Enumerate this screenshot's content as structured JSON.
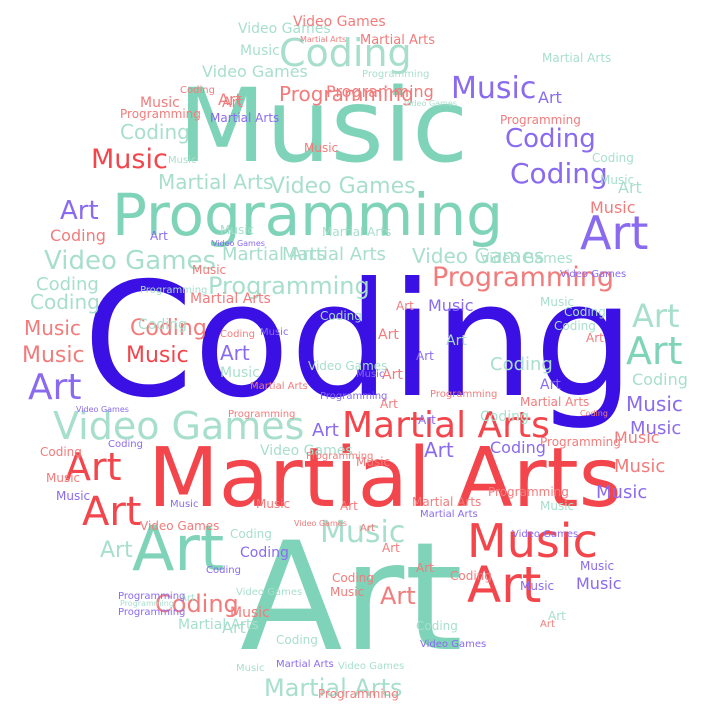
{
  "palette": {
    "teal": "#7fd3b8",
    "blue": "#3a10e5",
    "red": "#f2464c",
    "salmon": "#f27c7c",
    "purple": "#8a6bf0"
  },
  "words": [
    {
      "text": "Coding",
      "color": "#3a10e5"
    },
    {
      "text": "Art",
      "color": "#7fd3b8"
    },
    {
      "text": "Martial Arts",
      "color": "#f2464c"
    },
    {
      "text": "Music",
      "color": "#7fd3b8"
    },
    {
      "text": "Programming",
      "color": "#7fd3b8"
    },
    {
      "text": "Video Games",
      "color": "#a8dfcc"
    },
    {
      "text": "Martial Arts",
      "color": "#f2464c"
    },
    {
      "text": "Art",
      "color": "#7fd3b8"
    },
    {
      "text": "Music",
      "color": "#f2464c"
    },
    {
      "text": "Art",
      "color": "#f2464c"
    },
    {
      "text": "Coding",
      "color": "#a8dfcc"
    },
    {
      "text": "Art",
      "color": "#8a6bf0"
    },
    {
      "text": "Programming",
      "color": "#f27c7c"
    },
    {
      "text": "Music",
      "color": "#8a6bf0"
    },
    {
      "text": "Coding",
      "color": "#8a6bf0"
    },
    {
      "text": "Coding",
      "color": "#8a6bf0"
    },
    {
      "text": "Music",
      "color": "#f2464c"
    },
    {
      "text": "Art",
      "color": "#8a6bf0"
    },
    {
      "text": "Art",
      "color": "#7fd3b8"
    },
    {
      "text": "Art",
      "color": "#a8dfcc"
    },
    {
      "text": "Coding",
      "color": "#f27c7c"
    },
    {
      "text": "Martial Arts",
      "color": "#a8dfcc"
    },
    {
      "text": "Video Games",
      "color": "#a8dfcc"
    },
    {
      "text": "Martial Arts",
      "color": "#a8dfcc"
    },
    {
      "text": "Video Games",
      "color": "#a8dfcc"
    },
    {
      "text": "Programming",
      "color": "#a8dfcc"
    },
    {
      "text": "Music",
      "color": "#f27c7c"
    },
    {
      "text": "Coding",
      "color": "#a8dfcc"
    },
    {
      "text": "Music",
      "color": "#a8dfcc"
    },
    {
      "text": "Coding",
      "color": "#a8dfcc"
    },
    {
      "text": "Programming",
      "color": "#f27c7c"
    },
    {
      "text": "Video Games",
      "color": "#a8dfcc"
    },
    {
      "text": "Art",
      "color": "#8a6bf0"
    },
    {
      "text": "Music",
      "color": "#f27c7c"
    },
    {
      "text": "Coding",
      "color": "#f27c7c"
    },
    {
      "text": "Art",
      "color": "#f2464c"
    },
    {
      "text": "Art",
      "color": "#f2464c"
    },
    {
      "text": "Music",
      "color": "#8a6bf0"
    },
    {
      "text": "Music",
      "color": "#f2464c"
    },
    {
      "text": "Art",
      "color": "#8a6bf0"
    },
    {
      "text": "Art",
      "color": "#a8dfcc"
    },
    {
      "text": "Art",
      "color": "#a8dfcc"
    },
    {
      "text": "Music",
      "color": "#f27c7c"
    },
    {
      "text": "Music",
      "color": "#f27c7c"
    },
    {
      "text": "Coding",
      "color": "#a8dfcc"
    },
    {
      "text": "Coding",
      "color": "#a8dfcc"
    },
    {
      "text": "Video Games",
      "color": "#a8dfcc"
    },
    {
      "text": "Video Games",
      "color": "#a8dfcc"
    },
    {
      "text": "Art",
      "color": "#8a6bf0"
    },
    {
      "text": "Art",
      "color": "#f27c7c"
    },
    {
      "text": "Coding",
      "color": "#8a6bf0"
    },
    {
      "text": "Music",
      "color": "#8a6bf0"
    },
    {
      "text": "Coding",
      "color": "#a8dfcc"
    },
    {
      "text": "Music",
      "color": "#f27c7c"
    },
    {
      "text": "Music",
      "color": "#8a6bf0"
    },
    {
      "text": "Martial Arts",
      "color": "#a8dfcc"
    },
    {
      "text": "Martial Arts",
      "color": "#f27c7c"
    },
    {
      "text": "Music",
      "color": "#a8dfcc"
    },
    {
      "text": "Coding",
      "color": "#f27c7c"
    },
    {
      "text": "Art",
      "color": "#f27c7c"
    },
    {
      "text": "Art",
      "color": "#f27c7c"
    },
    {
      "text": "Art",
      "color": "#8a6bf0"
    },
    {
      "text": "Art",
      "color": "#f27c7c"
    },
    {
      "text": "Coding",
      "color": "#a8dfcc"
    },
    {
      "text": "Music",
      "color": "#8a6bf0"
    },
    {
      "text": "Coding",
      "color": "#a8dfcc"
    },
    {
      "text": "Programming",
      "color": "#f27c7c"
    },
    {
      "text": "Martial Arts",
      "color": "#a8dfcc"
    },
    {
      "text": "Video Games",
      "color": "#a8dfcc"
    },
    {
      "text": "Video Games",
      "color": "#f27c7c"
    },
    {
      "text": "Music",
      "color": "#f27c7c"
    },
    {
      "text": "Martial Arts",
      "color": "#f27c7c"
    },
    {
      "text": "Programming",
      "color": "#f27c7c"
    },
    {
      "text": "Art",
      "color": "#f27c7c"
    },
    {
      "text": "Art",
      "color": "#8a6bf0"
    },
    {
      "text": "Music",
      "color": "#8a6bf0"
    },
    {
      "text": "Coding",
      "color": "#a8dfcc"
    },
    {
      "text": "Art",
      "color": "#a8dfcc"
    },
    {
      "text": "Music",
      "color": "#f27c7c"
    },
    {
      "text": "Martial Arts",
      "color": "#a8dfcc"
    },
    {
      "text": "Programming",
      "color": "#f27c7c"
    },
    {
      "text": "Video Games",
      "color": "#f27c7c"
    },
    {
      "text": "Coding",
      "color": "#a8dfcc"
    },
    {
      "text": "Martial Arts",
      "color": "#f27c7c"
    },
    {
      "text": "Video Games",
      "color": "#a8dfcc"
    },
    {
      "text": "Programming",
      "color": "#f27c7c"
    },
    {
      "text": "Music",
      "color": "#a8dfcc"
    },
    {
      "text": "Coding",
      "color": "#8a6bf0"
    },
    {
      "text": "Art",
      "color": "#8a6bf0"
    },
    {
      "text": "Art",
      "color": "#a8dfcc"
    },
    {
      "text": "Martial Arts",
      "color": "#8a6bf0"
    },
    {
      "text": "Programming",
      "color": "#a8dfcc"
    },
    {
      "text": "Music",
      "color": "#a8dfcc"
    },
    {
      "text": "Music",
      "color": "#8a6bf0"
    },
    {
      "text": "Video Games",
      "color": "#a8dfcc"
    },
    {
      "text": "Programming",
      "color": "#8a6bf0"
    },
    {
      "text": "Music",
      "color": "#f27c7c"
    },
    {
      "text": "Coding",
      "color": "#a8dfcc"
    },
    {
      "text": "Art",
      "color": "#f27c7c"
    },
    {
      "text": "Art",
      "color": "#f27c7c"
    },
    {
      "text": "Art",
      "color": "#a8dfcc"
    },
    {
      "text": "Coding",
      "color": "#f27c7c"
    },
    {
      "text": "Programming",
      "color": "#f27c7c"
    },
    {
      "text": "Music",
      "color": "#f27c7c"
    },
    {
      "text": "Music",
      "color": "#a8dfcc"
    },
    {
      "text": "Martial Arts",
      "color": "#8a6bf0"
    },
    {
      "text": "Coding",
      "color": "#a8dfcc"
    },
    {
      "text": "Art",
      "color": "#f27c7c"
    },
    {
      "text": "Programming",
      "color": "#f27c7c"
    },
    {
      "text": "Programming",
      "color": "#f27c7c"
    },
    {
      "text": "Programming",
      "color": "#a8dfcc"
    },
    {
      "text": "Video Games",
      "color": "#8a6bf0"
    },
    {
      "text": "Music",
      "color": "#8a6bf0"
    },
    {
      "text": "Music",
      "color": "#a8dfcc"
    },
    {
      "text": "Martial Arts",
      "color": "#a8dfcc"
    },
    {
      "text": "Coding",
      "color": "#a8dfcc"
    },
    {
      "text": "Coding",
      "color": "#f27c7c"
    },
    {
      "text": "Music",
      "color": "#f27c7c"
    },
    {
      "text": "Video Games",
      "color": "#8a6bf0"
    },
    {
      "text": "Music",
      "color": "#8a6bf0"
    },
    {
      "text": "Art",
      "color": "#8a6bf0"
    },
    {
      "text": "Programming",
      "color": "#f27c7c"
    },
    {
      "text": "Martial Arts",
      "color": "#f27c7c"
    },
    {
      "text": "Video Games",
      "color": "#8a6bf0"
    },
    {
      "text": "Art",
      "color": "#f27c7c"
    },
    {
      "text": "Art",
      "color": "#f27c7c"
    },
    {
      "text": "Coding",
      "color": "#a8dfcc"
    },
    {
      "text": "Coding",
      "color": "#f27c7c"
    },
    {
      "text": "Music",
      "color": "#a8dfcc"
    },
    {
      "text": "Martial Arts",
      "color": "#8a6bf0"
    },
    {
      "text": "Video Games",
      "color": "#a8dfcc"
    },
    {
      "text": "Coding",
      "color": "#a8dfcc"
    },
    {
      "text": "Art",
      "color": "#a8dfcc"
    },
    {
      "text": "Music",
      "color": "#8a6bf0"
    },
    {
      "text": "Coding",
      "color": "#8a6bf0"
    },
    {
      "text": "Art",
      "color": "#f27c7c"
    },
    {
      "text": "Programming",
      "color": "#8a6bf0"
    },
    {
      "text": "Music",
      "color": "#f27c7c"
    },
    {
      "text": "Coding",
      "color": "#f27c7c"
    },
    {
      "text": "Music",
      "color": "#8a6bf0"
    },
    {
      "text": "Martial Arts",
      "color": "#a8dfcc"
    },
    {
      "text": "Programming",
      "color": "#8a6bf0"
    },
    {
      "text": "Coding",
      "color": "#f27c7c"
    },
    {
      "text": "Coding",
      "color": "#8a6bf0"
    },
    {
      "text": "Martial Arts",
      "color": "#f27c7c"
    },
    {
      "text": "Programming",
      "color": "#f27c7c"
    },
    {
      "text": "Music",
      "color": "#a8dfcc"
    },
    {
      "text": "Video Games",
      "color": "#a8dfcc"
    },
    {
      "text": "Music",
      "color": "#f27c7c"
    },
    {
      "text": "Music",
      "color": "#f27c7c"
    },
    {
      "text": "Music",
      "color": "#a8dfcc"
    },
    {
      "text": "Art",
      "color": "#8a6bf0"
    },
    {
      "text": "Art",
      "color": "#f27c7c"
    },
    {
      "text": "Music",
      "color": "#8a6bf0"
    },
    {
      "text": "Art",
      "color": "#8a6bf0"
    },
    {
      "text": "Art",
      "color": "#f27c7c"
    },
    {
      "text": "Video Games",
      "color": "#8a6bf0"
    },
    {
      "text": "Martial Arts",
      "color": "#f27c7c"
    },
    {
      "text": "Programming",
      "color": "#a8dfcc"
    },
    {
      "text": "Video Games",
      "color": "#a8dfcc"
    },
    {
      "text": "Video Games",
      "color": "#8a6bf0"
    },
    {
      "text": "Video Games",
      "color": "#f27c7c"
    },
    {
      "text": "Coding",
      "color": "#f27c7c"
    }
  ]
}
